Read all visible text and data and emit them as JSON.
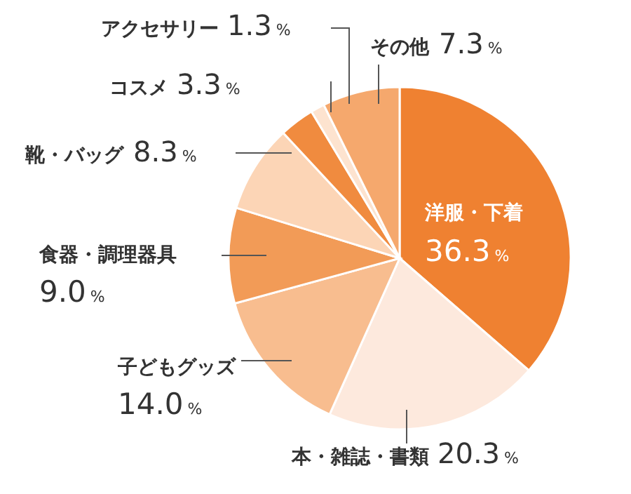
{
  "chart_data": {
    "type": "pie",
    "categories": [
      "洋服・下着",
      "本・雑誌・書類",
      "子どもグッズ",
      "食器・調理器具",
      "靴・バッグ",
      "コスメ",
      "アクセサリー",
      "その他"
    ],
    "values": [
      36.3,
      20.3,
      14.0,
      9.0,
      8.3,
      3.3,
      1.3,
      7.3
    ],
    "value_labels": [
      "36.3%",
      "20.3%",
      "14.0%",
      "9.0%",
      "8.3%",
      "3.3%",
      "1.3%",
      "7.3%"
    ],
    "colors": [
      "#ef8131",
      "#fde9dd",
      "#f8bd8f",
      "#f29b57",
      "#fcd5b6",
      "#f08b3f",
      "#fde3cf",
      "#f5a86d"
    ]
  }
}
